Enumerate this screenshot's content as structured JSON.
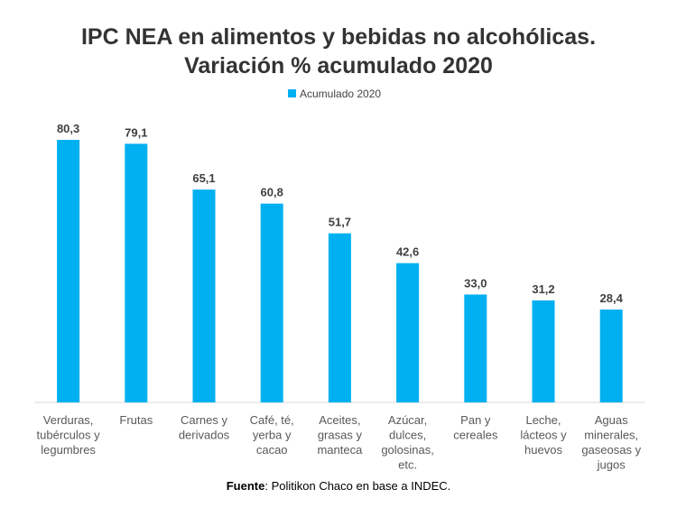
{
  "chart_data": {
    "type": "bar",
    "title": "IPC NEA en alimentos y bebidas no alcohólicas.",
    "subtitle": "Variación % acumulado 2020",
    "categories": [
      [
        "Verduras,",
        "tubérculos y",
        "legumbres"
      ],
      [
        "Frutas"
      ],
      [
        "Carnes y",
        "derivados"
      ],
      [
        "Café, té,",
        "yerba y",
        "cacao"
      ],
      [
        "Aceites,",
        "grasas y",
        "manteca"
      ],
      [
        "Azúcar,",
        "dulces,",
        "golosinas,",
        "etc."
      ],
      [
        "Pan y",
        "cereales"
      ],
      [
        "Leche,",
        "lácteos y",
        "huevos"
      ],
      [
        "Aguas",
        "minerales,",
        "gaseosas y",
        "jugos"
      ]
    ],
    "series": [
      {
        "name": "Acumulado 2020",
        "color": "#00B0F0",
        "values": [
          80.3,
          79.1,
          65.1,
          60.8,
          51.7,
          42.6,
          33.0,
          31.2,
          28.4
        ],
        "labels": [
          "80,3",
          "79,1",
          "65,1",
          "60,8",
          "51,7",
          "42,6",
          "33,0",
          "31,2",
          "28,4"
        ]
      }
    ],
    "ylim": [
      0,
      80.3
    ],
    "grid": false,
    "legend": "top-center",
    "xlabel": "",
    "ylabel": ""
  },
  "source": {
    "bold": "Fuente",
    "text": ": Politikon Chaco  en base a INDEC."
  }
}
